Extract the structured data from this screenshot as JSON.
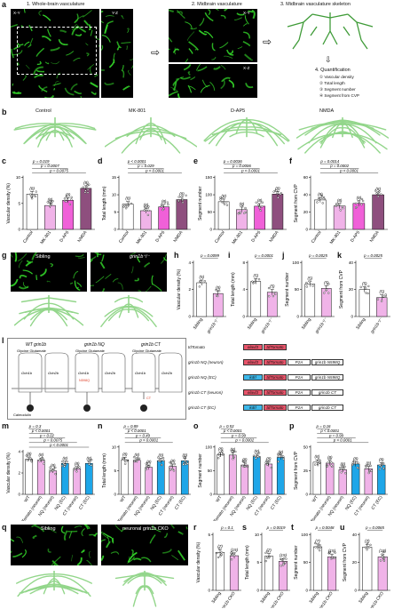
{
  "panel_letters": [
    "a",
    "b",
    "c",
    "d",
    "e",
    "f",
    "g",
    "h",
    "i",
    "j",
    "k",
    "l",
    "m",
    "n",
    "o",
    "p",
    "q",
    "r",
    "s",
    "t",
    "u"
  ],
  "panel_a": {
    "step1": "1. Whole-brain vasculature",
    "step2": "2. Midbrain vasculature",
    "step3": "3. Midbrain vasculature skeleton",
    "xy": "X-Y",
    "yz": "Y-Z",
    "xz": "X-Z",
    "quant_title": "4. Quantification",
    "quant_items": [
      "① Vascular density",
      "② Total length",
      "③ Segment number",
      "④ Segment from CVP"
    ]
  },
  "panel_b": {
    "labels": [
      "Control",
      "MK-801",
      "D-AP5",
      "NMDA"
    ]
  },
  "panel_g": {
    "sibling": "Sibling",
    "mutant": "grin1b⁺/⁻"
  },
  "panel_q": {
    "sibling": "Sibling",
    "mutant": "neuronal grin1b CKO"
  },
  "panel_l": {
    "diagrams": [
      {
        "title": "WT grin1b",
        "sub": "Glycine  Glutamate",
        "g1": "Grin1b",
        "g2": "Grin2b"
      },
      {
        "title": "grin1b NQ",
        "sub": "Glycine  Glutamate",
        "g1": "Grin1b",
        "g2": "Grin2b",
        "mut": "N598Q"
      },
      {
        "title": "grin1b CT",
        "sub": "Glycine  Glutamate",
        "g1": "Grin1b",
        "g2": "Grin2b",
        "mut": "CT"
      }
    ],
    "calmodulin": "Calmodulin",
    "constructs": [
      {
        "name": "tdTomato",
        "boxes": [
          "elavl3",
          "tdTomato"
        ]
      },
      {
        "name": "grin1b NQ (neuron)",
        "boxes": [
          "elavl3",
          "tdTomato",
          "P2A",
          "grin1b N598Q"
        ]
      },
      {
        "name": "grin1b NQ (EC)",
        "boxes": [
          "kdrl",
          "tdTomato",
          "P2A",
          "grin1b N598Q"
        ]
      },
      {
        "name": "grin1b CT (neuron)",
        "boxes": [
          "elavl3",
          "tdTomato",
          "P2A",
          "grin1b CT"
        ]
      },
      {
        "name": "grin1b CT (EC)",
        "boxes": [
          "kdrl",
          "tdTomato",
          "P2A",
          "grin1b CT"
        ]
      }
    ]
  },
  "colors": {
    "vessel_green": "#32d028",
    "skeleton_green": "#93d68b",
    "control": "#ffffff",
    "mk801": "#f0b3e8",
    "dap5": "#f060d8",
    "nmda": "#8e4f7e",
    "ec_blue": "#1ea6e8"
  },
  "chart_data": [
    {
      "id": "c",
      "type": "bar",
      "ylabel": "Vascular density (%)",
      "ylim": [
        0,
        10
      ],
      "yticks": [
        "0",
        "5",
        "10"
      ],
      "categories": [
        "Control",
        "MK-801",
        "D-AP5",
        "NMDA"
      ],
      "values": [
        6.8,
        4.6,
        5.6,
        7.9
      ],
      "n": [
        "(8)",
        "(8)",
        "(8)",
        "(8)"
      ],
      "stats": [
        "p = 0.019",
        "p = 0.0007",
        "p = 0.0075"
      ]
    },
    {
      "id": "d",
      "type": "bar",
      "ylabel": "Total length (mm)",
      "ylim": [
        0,
        15
      ],
      "yticks": [
        "0",
        "5",
        "10",
        "15"
      ],
      "categories": [
        "Control",
        "MK-801",
        "D-AP5",
        "NMDA"
      ],
      "values": [
        7.3,
        5.4,
        6.5,
        8.6
      ],
      "n": [
        "(8)",
        "(8)",
        "(8)",
        "(8)"
      ],
      "stats": [
        "p < 0.0001",
        "p = 0.029",
        "p < 0.0001"
      ]
    },
    {
      "id": "e",
      "type": "bar",
      "ylabel": "Segment number",
      "ylim": [
        0,
        150
      ],
      "yticks": [
        "0",
        "50",
        "100",
        "150"
      ],
      "categories": [
        "Control",
        "MK-801",
        "D-AP5",
        "NMDA"
      ],
      "values": [
        80,
        57,
        67,
        102
      ],
      "n": [
        "(8)",
        "(8)",
        "(8)",
        "(8)"
      ],
      "stats": [
        "p = 0.0036",
        "p = 0.0006",
        "p < 0.0001"
      ]
    },
    {
      "id": "f",
      "type": "bar",
      "ylabel": "Segment from CVP",
      "ylim": [
        0,
        60
      ],
      "yticks": [
        "0",
        "20",
        "40",
        "60"
      ],
      "categories": [
        "Control",
        "MK-801",
        "D-AP5",
        "NMDA"
      ],
      "values": [
        34,
        27,
        30,
        40
      ],
      "n": [
        "(8)",
        "(8)",
        "(8)",
        "(8)"
      ],
      "stats": [
        "p = 0.0014",
        "p = 0.0002",
        "p < 0.0001"
      ]
    },
    {
      "id": "h",
      "type": "bar",
      "ylabel": "Vascular density (%)",
      "ylim": [
        0,
        4
      ],
      "yticks": [
        "0",
        "2",
        "4"
      ],
      "categories": [
        "Sibling",
        "grin1b⁺/⁻"
      ],
      "values": [
        2.5,
        1.7
      ],
      "n": [
        "(5)",
        "(5)"
      ],
      "stats": [
        "p = 0.0099"
      ]
    },
    {
      "id": "i",
      "type": "bar",
      "ylabel": "Total length (mm)",
      "ylim": [
        0,
        8
      ],
      "yticks": [
        "0",
        "4",
        "8"
      ],
      "categories": [
        "Sibling",
        "grin1b⁺/⁻"
      ],
      "values": [
        5.2,
        3.6
      ],
      "n": [
        "(5)",
        "(5)"
      ],
      "stats": [
        "p = 0.0001"
      ]
    },
    {
      "id": "j",
      "type": "bar",
      "ylabel": "Segment number",
      "ylim": [
        0,
        100
      ],
      "yticks": [
        "0",
        "50",
        "100"
      ],
      "categories": [
        "Sibling",
        "grin1b⁺/⁻"
      ],
      "values": [
        60,
        52
      ],
      "n": [
        "(5)",
        "(5)"
      ],
      "stats": [
        "p = 0.0025"
      ]
    },
    {
      "id": "k",
      "type": "bar",
      "ylabel": "Segment from CVP",
      "ylim": [
        0,
        40
      ],
      "yticks": [
        "0",
        "20",
        "40"
      ],
      "categories": [
        "Sibling",
        "grin1b⁺/⁻"
      ],
      "values": [
        20,
        14
      ],
      "n": [
        "(5)",
        "(5)"
      ],
      "stats": [
        "p = 0.0025"
      ]
    },
    {
      "id": "m",
      "type": "bar",
      "ylabel": "Vascular density (%)",
      "ylim": [
        0,
        4
      ],
      "yticks": [
        "0",
        "2",
        "4"
      ],
      "categories": [
        "WT",
        "tdTomato (neuron)",
        "NQ (neuron)",
        "NQ (EC)",
        "CT (neuron)",
        "CT (EC)"
      ],
      "values": [
        3.3,
        3.2,
        2.2,
        2.9,
        2.4,
        2.9
      ],
      "n": [
        "(8)",
        "(8)",
        "(8)",
        "(8)",
        "(8)",
        "(8)"
      ],
      "stats": [
        "p = 0.3",
        "p < 0.0001",
        "p = 0.02",
        "p = 0.0075",
        "p < 0.0001"
      ]
    },
    {
      "id": "n",
      "type": "bar",
      "ylabel": "Total length (mm)",
      "ylim": [
        0,
        10
      ],
      "yticks": [
        "0",
        "5",
        "10"
      ],
      "categories": [
        "WT",
        "tdTomato (neuron)",
        "NQ (neuron)",
        "NQ (EC)",
        "CT (neuron)",
        "CT (EC)"
      ],
      "values": [
        7.3,
        7.2,
        5.7,
        7.1,
        5.9,
        7.1
      ],
      "n": [
        "(8)",
        "(8)",
        "(8)",
        "(8)",
        "(8)",
        "(8)"
      ],
      "stats": [
        "p = 0.89",
        "p < 0.0001",
        "p = 0.49",
        "p < 0.0001"
      ]
    },
    {
      "id": "o",
      "type": "bar",
      "ylabel": "Segment number",
      "ylim": [
        0,
        100
      ],
      "yticks": [
        "0",
        "50",
        "100"
      ],
      "categories": [
        "WT",
        "tdTomato (neuron)",
        "NQ (neuron)",
        "NQ (EC)",
        "CT (neuron)",
        "CT (EC)"
      ],
      "values": [
        84,
        83,
        62,
        80,
        64,
        78
      ],
      "n": [
        "(8)",
        "(8)",
        "(8)",
        "(8)",
        "(8)",
        "(8)"
      ],
      "stats": [
        "p = 0.53",
        "p < 0.0001",
        "p = 0.99",
        "p = 0.0002"
      ]
    },
    {
      "id": "p",
      "type": "bar",
      "ylabel": "Segment from CVP",
      "ylim": [
        0,
        50
      ],
      "yticks": [
        "0",
        "25",
        "50"
      ],
      "categories": [
        "WT",
        "tdTomato (neuron)",
        "NQ (neuron)",
        "NQ (EC)",
        "CT (neuron)",
        "CT (EC)"
      ],
      "values": [
        34,
        33,
        26,
        32,
        27,
        31
      ],
      "n": [
        "(8)",
        "(8)",
        "(8)",
        "(8)",
        "(8)",
        "(8)"
      ],
      "stats": [
        "p = 0.16",
        "p < 0.0001",
        "p = 0.99",
        "p < 0.0001"
      ]
    },
    {
      "id": "r",
      "type": "bar",
      "ylabel": "Vascular density (%)",
      "ylim": [
        0,
        5
      ],
      "yticks": [
        "0",
        "5"
      ],
      "categories": [
        "Sibling",
        "Neuronal grin1b CKO"
      ],
      "values": [
        3.4,
        3.1
      ],
      "n": [
        "(7)",
        "(15)"
      ],
      "stats": [
        "p = 0.1"
      ]
    },
    {
      "id": "s",
      "type": "bar",
      "ylabel": "Total length (mm)",
      "ylim": [
        0,
        10
      ],
      "yticks": [
        "0",
        "5",
        "10"
      ],
      "categories": [
        "Sibling",
        "Neuronal grin1b CKO"
      ],
      "values": [
        6.1,
        5.2
      ],
      "n": [
        "(7)",
        "(15)"
      ],
      "stats": [
        "p = 0.0019"
      ]
    },
    {
      "id": "t",
      "type": "bar",
      "ylabel": "Segment number",
      "ylim": [
        0,
        100
      ],
      "yticks": [
        "0",
        "50",
        "100"
      ],
      "categories": [
        "Sibling",
        "Neuronal grin1b CKO"
      ],
      "values": [
        78,
        60
      ],
      "n": [
        "(7)",
        "(15)"
      ],
      "stats": [
        "p = 0.0048"
      ]
    },
    {
      "id": "u",
      "type": "bar",
      "ylabel": "Segment from CVP",
      "ylim": [
        0,
        40
      ],
      "yticks": [
        "0",
        "20",
        "40"
      ],
      "categories": [
        "Sibling",
        "Neuronal grin1b CKO"
      ],
      "values": [
        31,
        24
      ],
      "n": [
        "(7)",
        "(15)"
      ],
      "stats": [
        "p = 0.0065"
      ]
    }
  ]
}
